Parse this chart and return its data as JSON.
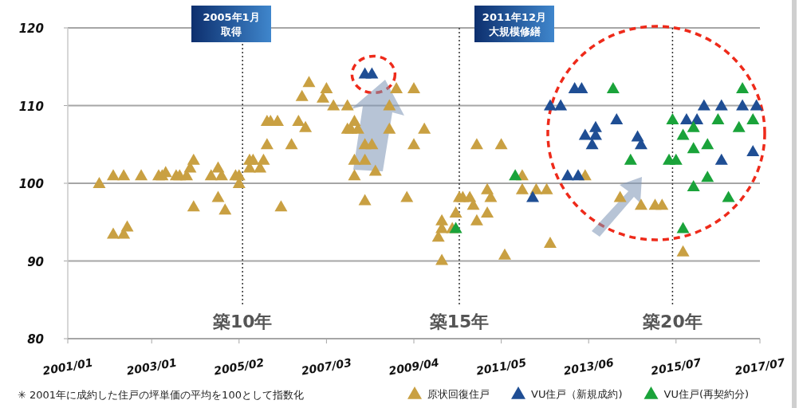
{
  "chart_data": {
    "type": "scatter",
    "marker": "triangle",
    "grid": "y",
    "legend": "bottom",
    "xlim": [
      "2001-01",
      "2017-07"
    ],
    "xticks": [
      {
        "value": "2001-01",
        "label": "2001/01"
      },
      {
        "value": "2003-01",
        "label": "2003/01"
      },
      {
        "value": "2005-02",
        "label": "2005/02"
      },
      {
        "value": "2007-03",
        "label": "2007/03"
      },
      {
        "value": "2009-04",
        "label": "2009/04"
      },
      {
        "value": "2011-05",
        "label": "2011/05"
      },
      {
        "value": "2013-06",
        "label": "2013/06"
      },
      {
        "value": "2015-07",
        "label": "2015/07"
      },
      {
        "value": "2017-07",
        "label": "2017/07"
      }
    ],
    "ylim": [
      80,
      120
    ],
    "yticks": [
      80,
      90,
      100,
      110,
      120
    ],
    "series": [
      {
        "name": "原状回復住戸",
        "color": "#c9a042",
        "x": [
          "2001-10",
          "2002-02",
          "2002-05",
          "2002-10",
          "2003-03",
          "2003-04",
          "2003-05",
          "2003-08",
          "2003-09",
          "2003-11",
          "2003-12",
          "2004-01",
          "2004-01",
          "2002-02",
          "2002-05",
          "2002-06",
          "2004-06",
          "2004-08",
          "2004-09",
          "2004-08",
          "2004-10",
          "2005-01",
          "2005-02",
          "2005-02",
          "2005-05",
          "2005-06",
          "2005-05",
          "2005-08",
          "2005-09",
          "2005-10",
          "2005-10",
          "2006-05",
          "2005-11",
          "2006-01",
          "2006-07",
          "2006-09",
          "2006-02",
          "2006-10",
          "2006-08",
          "2007-03",
          "2007-02",
          "2007-05",
          "2007-09",
          "2007-09",
          "2007-10",
          "2007-12",
          "2007-11",
          "2008-02",
          "2008-04",
          "2007-11",
          "2008-02",
          "2007-11",
          "2008-05",
          "2008-02",
          "2008-11",
          "2008-09",
          "2008-09",
          "2009-04",
          "2009-07",
          "2009-04",
          "2009-02",
          "2009-12",
          "2009-12",
          "2009-11",
          "2009-12",
          "2010-03",
          "2010-04",
          "2010-05",
          "2010-06",
          "2010-08",
          "2010-09",
          "2010-10",
          "2011-01",
          "2011-02",
          "2011-01",
          "2010-10",
          "2011-05",
          "2011-06",
          "2011-11",
          "2011-11",
          "2013-05",
          "2012-03",
          "2012-06",
          "2014-03",
          "2014-09",
          "2015-01",
          "2015-03",
          "2012-07",
          "2015-09"
        ],
        "values": [
          100,
          101,
          101,
          101,
          101,
          101,
          101.4,
          101,
          101,
          101,
          102,
          103,
          97,
          93.5,
          93.5,
          94.4,
          101,
          102,
          101,
          98.2,
          96.6,
          101,
          101,
          100,
          103,
          103,
          102,
          102,
          103,
          105,
          108,
          105,
          108,
          108,
          108,
          107.2,
          97,
          113,
          111.2,
          112.2,
          111,
          110,
          110,
          107,
          107,
          107,
          108,
          105,
          105,
          103,
          103,
          101,
          101.6,
          97.8,
          112.2,
          110,
          107,
          112.2,
          107,
          105,
          98.2,
          95.2,
          94.2,
          93.1,
          90.1,
          94.2,
          96.2,
          98.2,
          98.2,
          98.2,
          97.2,
          95.2,
          99.2,
          98.2,
          96.2,
          105,
          105,
          90.8,
          101,
          99.2,
          101,
          99.2,
          99.2,
          98.2,
          97.2,
          97.2,
          97.2,
          92.3,
          91.2
        ]
      },
      {
        "name": "VU住戸（新規成約)",
        "color": "#1f4e94",
        "x": [
          "2008-02",
          "2008-04",
          "2012-02",
          "2012-07",
          "2012-10",
          "2013-02",
          "2013-04",
          "2014-02",
          "2013-08",
          "2013-05",
          "2013-08",
          "2013-07",
          "2014-08",
          "2014-09",
          "2012-12",
          "2013-03",
          "2015-10",
          "2016-01",
          "2016-03",
          "2016-08",
          "2017-02",
          "2017-06",
          "2017-05",
          "2016-08"
        ],
        "values": [
          114.1,
          114.1,
          98.2,
          110,
          110,
          112.2,
          112.2,
          108.2,
          107.2,
          106.2,
          106.2,
          105,
          106,
          105,
          101,
          101,
          108.2,
          108.2,
          110,
          110,
          110,
          110,
          104.1,
          103
        ]
      },
      {
        "name": "VU住戸(再契約分)",
        "color": "#1aa33a",
        "x": [
          "2010-04",
          "2011-09",
          "2014-01",
          "2014-06",
          "2015-05",
          "2015-07",
          "2015-09",
          "2015-06",
          "2015-12",
          "2015-09",
          "2015-12",
          "2016-04",
          "2016-07",
          "2017-02",
          "2017-01",
          "2017-05",
          "2016-04",
          "2015-12",
          "2016-10"
        ],
        "values": [
          94.2,
          101,
          112.2,
          103,
          103,
          103,
          94.2,
          108.2,
          107.2,
          106.2,
          104.5,
          105,
          108.2,
          112.2,
          107.2,
          108.2,
          100.8,
          99.6,
          98.2
        ]
      }
    ],
    "ref_lines": [
      {
        "axis": "x",
        "value": "2005-03",
        "label": "築10年",
        "line_style": "dotted",
        "color": "#333333"
      },
      {
        "axis": "x",
        "value": "2010-05",
        "label": "築15年",
        "line_style": "dotted",
        "color": "#333333"
      },
      {
        "axis": "x",
        "value": "2015-06",
        "label": "築20年",
        "line_style": "dotted",
        "color": "#333333"
      }
    ],
    "annotations": [
      "2005年1月",
      "取得",
      "2011年12月",
      "大規模修繕",
      "✳  2001年に成約した住戸の坪単価の平均を100として指数化"
    ]
  }
}
